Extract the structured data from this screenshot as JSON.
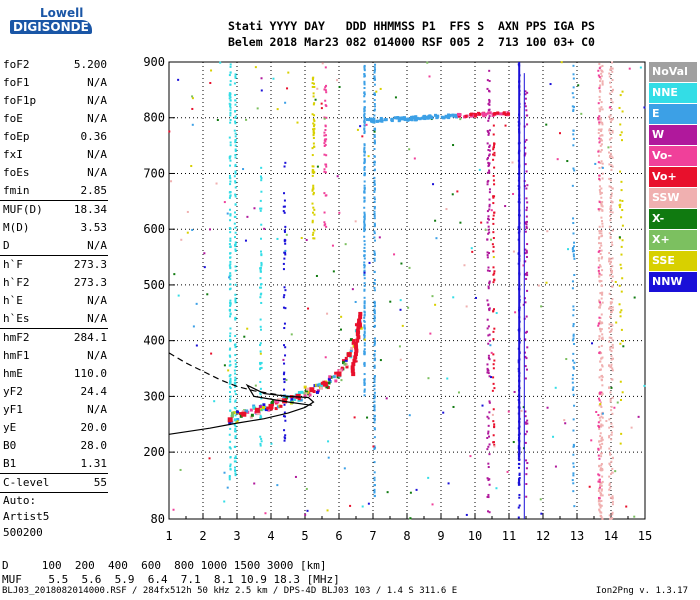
{
  "logo": {
    "line1": "Lowell",
    "line2": "DIGISONDE"
  },
  "header": {
    "row1": "Stati YYYY DAY   DDD HHMMSS P1  FFS S  AXN PPS IGA PS",
    "row2": "Belem 2018 Mar23 082 014000 RSF 005 2  713 100 03+ C0"
  },
  "params": [
    {
      "k": "foF2",
      "v": "5.200"
    },
    {
      "k": "foF1",
      "v": "N/A"
    },
    {
      "k": "foF1p",
      "v": "N/A"
    },
    {
      "k": "foE",
      "v": "N/A"
    },
    {
      "k": "foEp",
      "v": "0.36"
    },
    {
      "k": "fxI",
      "v": "N/A"
    },
    {
      "k": "foEs",
      "v": "N/A"
    },
    {
      "k": "fmin",
      "v": "2.85"
    },
    {
      "sep": true
    },
    {
      "k": "MUF(D)",
      "v": "18.34"
    },
    {
      "k": "M(D)",
      "v": "3.53"
    },
    {
      "k": "D",
      "v": "N/A"
    },
    {
      "sep": true
    },
    {
      "k": "h`F",
      "v": "273.3"
    },
    {
      "k": "h`F2",
      "v": "273.3"
    },
    {
      "k": "h`E",
      "v": "N/A"
    },
    {
      "k": "h`Es",
      "v": "N/A"
    },
    {
      "sep": true
    },
    {
      "k": "hmF2",
      "v": "284.1"
    },
    {
      "k": "hmF1",
      "v": "N/A"
    },
    {
      "k": "hmE",
      "v": "110.0"
    },
    {
      "k": "yF2",
      "v": "24.4"
    },
    {
      "k": "yF1",
      "v": "N/A"
    },
    {
      "k": "yE",
      "v": "20.0"
    },
    {
      "k": "B0",
      "v": "28.0"
    },
    {
      "k": "B1",
      "v": "1.31"
    },
    {
      "sep": true
    },
    {
      "k": "C-level",
      "v": "55"
    },
    {
      "sep": true
    },
    {
      "text": "Auto:"
    },
    {
      "text": "Artist5"
    },
    {
      "text": "500200"
    }
  ],
  "legend": [
    {
      "label": "NoVal",
      "color": "#a0a0a0"
    },
    {
      "label": "NNE",
      "color": "#33dde6"
    },
    {
      "label": "E",
      "color": "#3ca0e6"
    },
    {
      "label": "W",
      "color": "#b0189c"
    },
    {
      "label": "Vo-",
      "color": "#f0409a"
    },
    {
      "label": "Vo+",
      "color": "#e8102c"
    },
    {
      "label": "SSW",
      "color": "#f0b0b0"
    },
    {
      "label": "X-",
      "color": "#107a10"
    },
    {
      "label": "X+",
      "color": "#7cc060"
    },
    {
      "label": "SSE",
      "color": "#d8d000"
    },
    {
      "label": "NNW",
      "color": "#1a10d8"
    }
  ],
  "dmuf": {
    "row1": "D     100  200  400  600  800 1000 1500 3000 [km]",
    "row2": "MUF    5.5  5.6  5.9  6.4  7.1  8.1 10.9 18.3 [MHz]"
  },
  "footer": "BLJ03_2018082014000.RSF / 284fx512h 50 kHz 2.5 km / DPS-4D BLJ03 103 / 1.4 S 311.6 E",
  "version": "Ion2Png v. 1.3.17",
  "chart_data": {
    "type": "scatter",
    "title": "",
    "xlabel": "",
    "ylabel": "",
    "xlim": [
      1,
      15
    ],
    "ylim": [
      80,
      900
    ],
    "xticks": [
      1,
      2,
      3,
      4,
      5,
      6,
      7,
      8,
      9,
      10,
      11,
      12,
      13,
      14,
      15
    ],
    "yticks": [
      80,
      200,
      300,
      400,
      500,
      600,
      700,
      800,
      900
    ],
    "grid": true,
    "traces": [
      {
        "name": "F2 trace",
        "color": "#e8102c",
        "x": [
          2.8,
          3.2,
          3.6,
          4.0,
          4.4,
          4.8,
          5.2,
          5.6,
          6.0,
          6.3,
          6.6
        ],
        "y": [
          258,
          268,
          275,
          282,
          292,
          300,
          312,
          322,
          340,
          375,
          428
        ]
      },
      {
        "name": "Es band",
        "color": "#3ca0e6",
        "x": [
          6.8,
          7.5,
          8.0,
          8.5,
          9.0,
          9.5,
          10.0,
          10.5,
          11.0
        ],
        "y": [
          795,
          797,
          798,
          800,
          802,
          803,
          805,
          806,
          807
        ]
      },
      {
        "name": "NNW column",
        "color": "#1a10d8",
        "x": [
          11.3,
          11.3,
          11.3,
          11.3,
          11.3
        ],
        "y": [
          190,
          300,
          450,
          600,
          800
        ]
      }
    ],
    "profile": {
      "solid_x": [
        1.0,
        2.2,
        3.0,
        3.8,
        4.5,
        5.0,
        5.25,
        5.1,
        4.5,
        3.8,
        3.3,
        3.5,
        4.5,
        5.2
      ],
      "solid_y": [
        232,
        243,
        252,
        260,
        270,
        280,
        290,
        298,
        300,
        305,
        320,
        300,
        290,
        284
      ],
      "dash_x": [
        1.0,
        1.5,
        2.0,
        2.5,
        3.0,
        3.5,
        4.0,
        4.5
      ],
      "dash_y": [
        378,
        360,
        345,
        330,
        318,
        310,
        305,
        300
      ]
    }
  }
}
